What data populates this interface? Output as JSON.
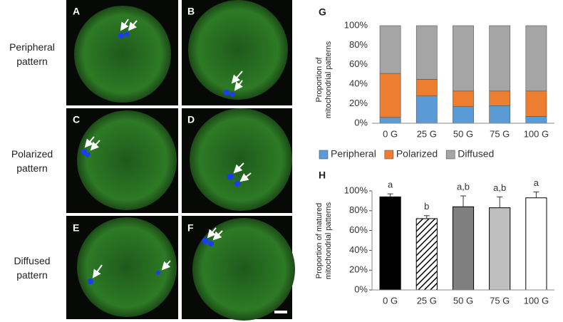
{
  "row_labels": [
    "Peripheral pattern",
    "Polarized pattern",
    "Diffused pattern"
  ],
  "panel_labels": [
    "A",
    "B",
    "C",
    "D",
    "E",
    "F"
  ],
  "chart_data": [
    {
      "type": "stacked_bar",
      "panel": "G",
      "ylabel": "Proportion of mitochondrial patterns",
      "categories": [
        "0 G",
        "25 G",
        "50 G",
        "75 G",
        "100 G"
      ],
      "series": [
        {
          "name": "Peripheral",
          "color": "#5b9bd5",
          "values": [
            6,
            28,
            17,
            18,
            7
          ]
        },
        {
          "name": "Polarized",
          "color": "#ed7d31",
          "values": [
            45,
            17,
            16,
            15,
            26
          ]
        },
        {
          "name": "Diffused",
          "color": "#a5a5a5",
          "values": [
            49,
            55,
            67,
            67,
            67
          ]
        }
      ],
      "ylim": [
        0,
        100
      ],
      "yticks": [
        {
          "value": 0,
          "label": "0%"
        },
        {
          "value": 20,
          "label": "20%"
        },
        {
          "value": 40,
          "label": "40%"
        },
        {
          "value": 60,
          "label": "60%"
        },
        {
          "value": 80,
          "label": "80%"
        },
        {
          "value": 100,
          "label": "100%"
        }
      ],
      "legend": "bottom",
      "axis_line": false
    },
    {
      "type": "bar",
      "panel": "H",
      "ylabel": "Proportion of matured mitochondrial patterns",
      "categories": [
        "0 G",
        "25 G",
        "50 G",
        "75 G",
        "100 G"
      ],
      "values": [
        94,
        72,
        84,
        83,
        93
      ],
      "errors": [
        3,
        3,
        11,
        11,
        6
      ],
      "annotations": [
        "a",
        "b",
        "a,b",
        "a,b",
        "a"
      ],
      "colors": [
        "#000000",
        "hatch",
        "#7f7f7f",
        "#bfbfbf",
        "#ffffff"
      ],
      "ylim": [
        0,
        100
      ],
      "yticks": [
        {
          "value": 0,
          "label": "0%"
        },
        {
          "value": 20,
          "label": "20%"
        },
        {
          "value": 40,
          "label": "40%"
        },
        {
          "value": 60,
          "label": "60%"
        },
        {
          "value": 80,
          "label": "80%"
        },
        {
          "value": 100,
          "label": "100%"
        }
      ],
      "axis_line": true
    }
  ]
}
